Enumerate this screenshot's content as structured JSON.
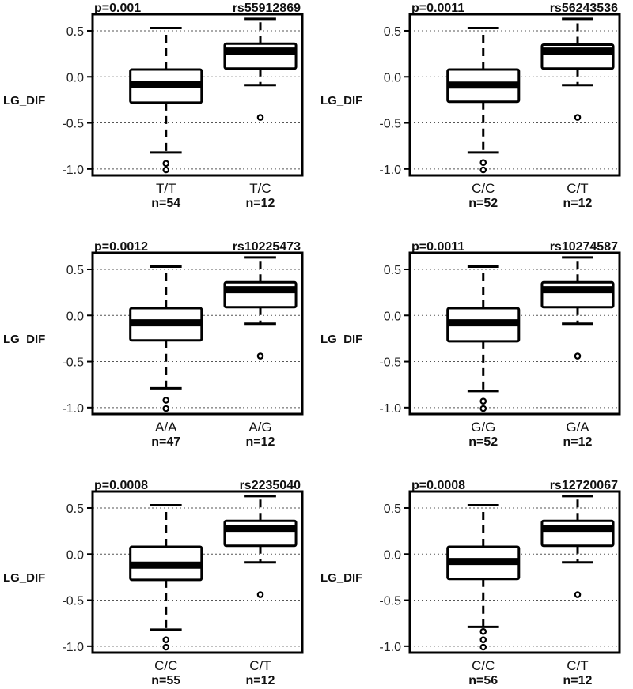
{
  "chart_data": [
    {
      "type": "box",
      "pvalue": "p=0.001",
      "snp": "rs55912869",
      "ylabel": "LG_DIF",
      "ylim": [
        -1.07,
        0.68
      ],
      "yticks": [
        "0.5",
        "0.0",
        "-0.5",
        "-1.0"
      ],
      "grid": "horizontal-dotted",
      "groups": [
        {
          "genotype": "T/T",
          "n": "n=54",
          "min": -0.82,
          "q1": -0.28,
          "median": -0.08,
          "q3": 0.08,
          "max": 0.53,
          "outliers": [
            -0.94,
            -1.01
          ]
        },
        {
          "genotype": "T/C",
          "n": "n=12",
          "min": -0.09,
          "q1": 0.09,
          "median": 0.28,
          "q3": 0.36,
          "max": 0.63,
          "outliers": [
            -0.44
          ]
        }
      ]
    },
    {
      "type": "box",
      "pvalue": "p=0.0011",
      "snp": "rs56243536",
      "ylabel": "LG_DIF",
      "ylim": [
        -1.07,
        0.68
      ],
      "yticks": [
        "0.5",
        "0.0",
        "-0.5",
        "-1.0"
      ],
      "grid": "horizontal-dotted",
      "groups": [
        {
          "genotype": "C/C",
          "n": "n=52",
          "min": -0.82,
          "q1": -0.27,
          "median": -0.09,
          "q3": 0.08,
          "max": 0.53,
          "outliers": [
            -0.93,
            -1.01
          ]
        },
        {
          "genotype": "C/T",
          "n": "n=12",
          "min": -0.09,
          "q1": 0.09,
          "median": 0.28,
          "q3": 0.35,
          "max": 0.63,
          "outliers": [
            -0.44
          ]
        }
      ]
    },
    {
      "type": "box",
      "pvalue": "p=0.0012",
      "snp": "rs10225473",
      "ylabel": "LG_DIF",
      "ylim": [
        -1.07,
        0.68
      ],
      "yticks": [
        "0.5",
        "0.0",
        "-0.5",
        "-1.0"
      ],
      "grid": "horizontal-dotted",
      "groups": [
        {
          "genotype": "A/A",
          "n": "n=47",
          "min": -0.79,
          "q1": -0.27,
          "median": -0.08,
          "q3": 0.08,
          "max": 0.53,
          "outliers": [
            -0.92,
            -1.01
          ]
        },
        {
          "genotype": "A/G",
          "n": "n=12",
          "min": -0.09,
          "q1": 0.09,
          "median": 0.28,
          "q3": 0.36,
          "max": 0.63,
          "outliers": [
            -0.44
          ]
        }
      ]
    },
    {
      "type": "box",
      "pvalue": "p=0.0011",
      "snp": "rs10274587",
      "ylabel": "LG_DIF",
      "ylim": [
        -1.07,
        0.68
      ],
      "yticks": [
        "0.5",
        "0.0",
        "-0.5",
        "-1.0"
      ],
      "grid": "horizontal-dotted",
      "groups": [
        {
          "genotype": "G/G",
          "n": "n=52",
          "min": -0.82,
          "q1": -0.28,
          "median": -0.08,
          "q3": 0.08,
          "max": 0.53,
          "outliers": [
            -0.93,
            -1.01
          ]
        },
        {
          "genotype": "G/A",
          "n": "n=12",
          "min": -0.09,
          "q1": 0.09,
          "median": 0.28,
          "q3": 0.36,
          "max": 0.63,
          "outliers": [
            -0.44
          ]
        }
      ]
    },
    {
      "type": "box",
      "pvalue": "p=0.0008",
      "snp": "rs2235040",
      "ylabel": "LG_DIF",
      "ylim": [
        -1.07,
        0.68
      ],
      "yticks": [
        "0.5",
        "0.0",
        "-0.5",
        "-1.0"
      ],
      "grid": "horizontal-dotted",
      "groups": [
        {
          "genotype": "C/C",
          "n": "n=55",
          "min": -0.82,
          "q1": -0.28,
          "median": -0.12,
          "q3": 0.08,
          "max": 0.53,
          "outliers": [
            -0.93,
            -1.01
          ]
        },
        {
          "genotype": "C/T",
          "n": "n=12",
          "min": -0.09,
          "q1": 0.09,
          "median": 0.28,
          "q3": 0.36,
          "max": 0.63,
          "outliers": [
            -0.44
          ]
        }
      ]
    },
    {
      "type": "box",
      "pvalue": "p=0.0008",
      "snp": "rs12720067",
      "ylabel": "LG_DIF",
      "ylim": [
        -1.07,
        0.68
      ],
      "yticks": [
        "0.5",
        "0.0",
        "-0.5",
        "-1.0"
      ],
      "grid": "horizontal-dotted",
      "groups": [
        {
          "genotype": "C/C",
          "n": "n=56",
          "min": -0.79,
          "q1": -0.27,
          "median": -0.08,
          "q3": 0.08,
          "max": 0.53,
          "outliers": [
            -0.84,
            -0.93,
            -1.01
          ]
        },
        {
          "genotype": "C/T",
          "n": "n=12",
          "min": -0.09,
          "q1": 0.09,
          "median": 0.28,
          "q3": 0.36,
          "max": 0.63,
          "outliers": [
            -0.44
          ]
        }
      ]
    }
  ]
}
